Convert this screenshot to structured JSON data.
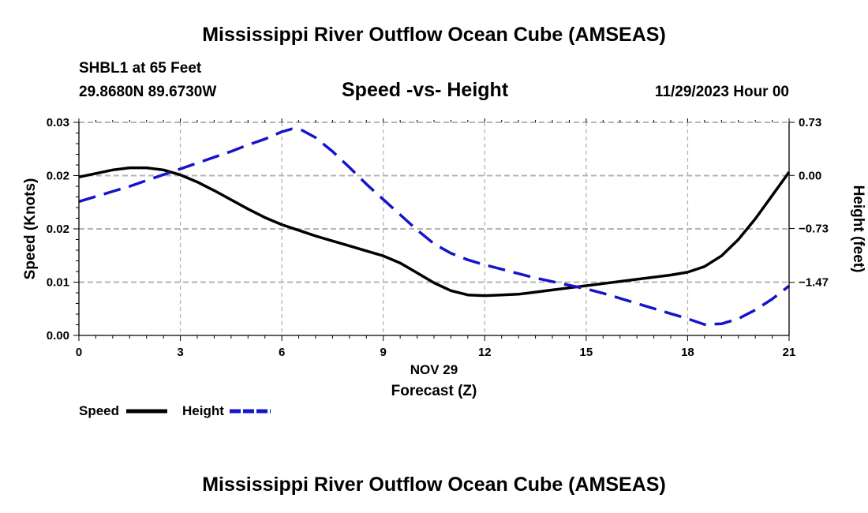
{
  "header": {
    "title_top": "Mississippi River Outflow Ocean Cube (AMSEAS)",
    "station": "SHBL1 at 65 Feet",
    "location": "29.8680N  89.6730W",
    "date": "11/29/2023 Hour 00",
    "title_bottom": "Mississippi River Outflow Ocean Cube (AMSEAS)"
  },
  "colors": {
    "speed": "#000000",
    "height": "#1515c8",
    "grid": "#b4b4b4"
  },
  "legend": {
    "speed_label": "Speed",
    "height_label": "Height",
    "speed_icon": "solid-line-icon",
    "height_icon": "dashed-line-icon"
  },
  "chart_data": {
    "type": "line",
    "title": "Speed -vs- Height",
    "xlabel": "Forecast (Z)",
    "xlabel_date": "NOV 29",
    "ylabel_left": "Speed (Knots)",
    "ylabel_right": "Height (feet)",
    "xlim": [
      0,
      21
    ],
    "ylim_left": [
      0,
      0.03
    ],
    "ylim_right": [
      -2.2,
      0.73
    ],
    "x_ticks": [
      0,
      3,
      6,
      9,
      12,
      15,
      18,
      21
    ],
    "x_tick_labels": [
      "0",
      "3",
      "6",
      "9",
      "12",
      "15",
      "18",
      "21"
    ],
    "left_ticks": [
      0.0,
      0.0075,
      0.015,
      0.0225,
      0.03
    ],
    "left_tick_labels": [
      "0.00",
      "0.01",
      "0.02",
      "0.02",
      "0.03"
    ],
    "right_ticks": [
      0.73,
      0.0,
      -0.73,
      -1.47
    ],
    "right_tick_labels": [
      "0.73",
      "0.00",
      "−0.73",
      "−1.47"
    ],
    "series": [
      {
        "name": "Speed",
        "axis": "left",
        "style": "solid",
        "x": [
          0,
          0.5,
          1,
          1.5,
          2,
          2.5,
          3,
          3.5,
          4,
          4.5,
          5,
          5.5,
          6,
          6.5,
          7,
          7.5,
          8,
          8.5,
          9,
          9.5,
          10,
          10.5,
          11,
          11.5,
          12,
          12.5,
          13,
          13.5,
          14,
          14.5,
          15,
          15.5,
          16,
          16.5,
          17,
          17.5,
          18,
          18.5,
          19,
          19.5,
          20,
          20.5,
          21
        ],
        "values": [
          0.0223,
          0.0228,
          0.0233,
          0.0236,
          0.0236,
          0.0233,
          0.0226,
          0.0216,
          0.0204,
          0.0191,
          0.0178,
          0.0166,
          0.0156,
          0.0148,
          0.014,
          0.0133,
          0.0126,
          0.0119,
          0.0112,
          0.0102,
          0.0088,
          0.0074,
          0.0063,
          0.0057,
          0.0056,
          0.0057,
          0.0058,
          0.0061,
          0.0064,
          0.0067,
          0.007,
          0.0073,
          0.0076,
          0.0079,
          0.0082,
          0.0085,
          0.0089,
          0.0097,
          0.0112,
          0.0135,
          0.0164,
          0.0197,
          0.023
        ]
      },
      {
        "name": "Height",
        "axis": "right",
        "style": "dashed",
        "x": [
          0,
          0.5,
          1,
          1.5,
          2,
          2.5,
          3,
          3.5,
          4,
          4.5,
          5,
          5.5,
          6,
          6.3,
          6.6,
          7,
          7.5,
          8,
          8.5,
          9,
          9.5,
          10,
          10.5,
          11,
          11.5,
          12,
          12.5,
          13,
          13.5,
          14,
          14.5,
          15,
          15.5,
          16,
          16.5,
          17,
          17.5,
          18,
          18.5,
          19,
          19.5,
          20,
          20.5,
          21
        ],
        "values": [
          -0.36,
          -0.29,
          -0.22,
          -0.15,
          -0.07,
          0.01,
          0.09,
          0.17,
          0.25,
          0.33,
          0.42,
          0.5,
          0.6,
          0.64,
          0.62,
          0.52,
          0.33,
          0.11,
          -0.12,
          -0.33,
          -0.54,
          -0.75,
          -0.94,
          -1.07,
          -1.16,
          -1.23,
          -1.29,
          -1.35,
          -1.41,
          -1.46,
          -1.51,
          -1.56,
          -1.62,
          -1.69,
          -1.76,
          -1.83,
          -1.9,
          -1.97,
          -2.05,
          -2.04,
          -1.97,
          -1.85,
          -1.7,
          -1.52
        ]
      }
    ]
  }
}
